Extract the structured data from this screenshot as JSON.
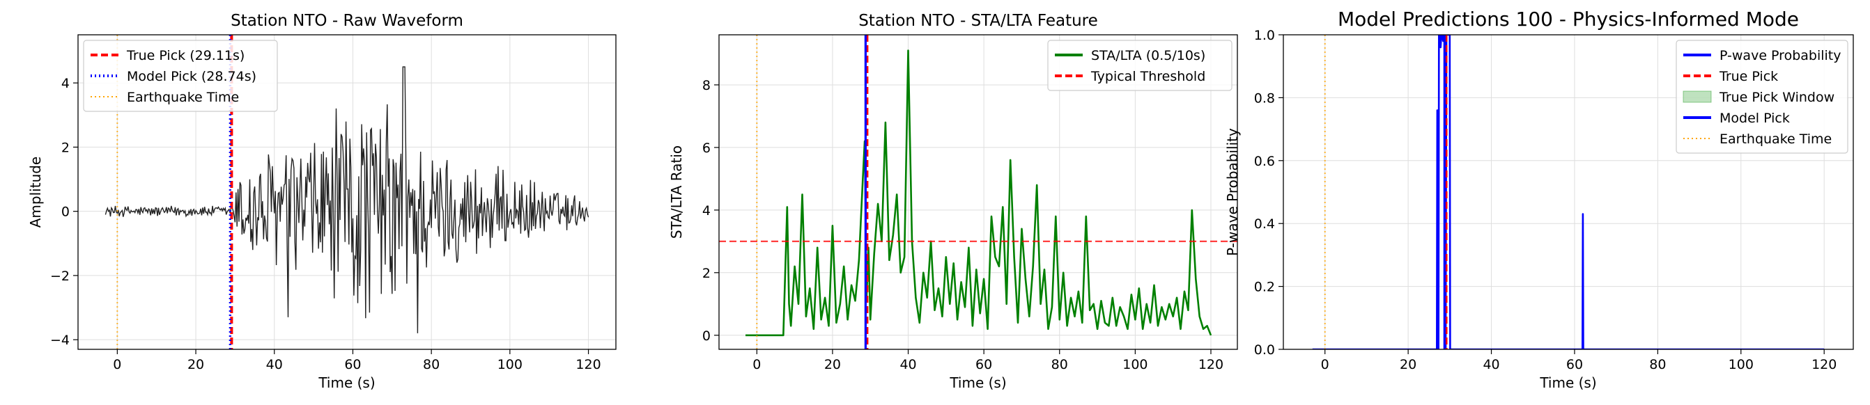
{
  "chart_data": [
    {
      "type": "line",
      "title": "Station NTO - Raw Waveform",
      "xlabel": "Time (s)",
      "ylabel": "Amplitude",
      "xlim": [
        -10,
        127
      ],
      "ylim": [
        -4.3,
        5.5
      ],
      "xticks": [
        0,
        20,
        40,
        60,
        80,
        100,
        120
      ],
      "yticks": [
        -4,
        -2,
        0,
        2,
        4
      ],
      "grid": true,
      "legend_position": "upper-left",
      "series": [
        {
          "name": "",
          "role": "waveform",
          "color": "#222222",
          "x_range": [
            -3,
            120
          ]
        }
      ],
      "markers": [
        {
          "name": "True Pick (29.11s)",
          "x": 29.11,
          "color": "#ff0000",
          "style": "dashed"
        },
        {
          "name": "Model Pick (28.74s)",
          "x": 28.74,
          "color": "#0000ff",
          "style": "dotted"
        },
        {
          "name": "Earthquake Time",
          "x": 0,
          "color": "#ffa500",
          "style": "dotted"
        }
      ],
      "legend": [
        "True Pick (29.11s)",
        "Model Pick (28.74s)",
        "Earthquake Time"
      ]
    },
    {
      "type": "line",
      "title": "Station NTO - STA/LTA Feature",
      "xlabel": "Time (s)",
      "ylabel": "STA/LTA Ratio",
      "xlim": [
        -10,
        127
      ],
      "ylim": [
        -0.45,
        9.6
      ],
      "xticks": [
        0,
        20,
        40,
        60,
        80,
        100,
        120
      ],
      "yticks": [
        0,
        2,
        4,
        6,
        8
      ],
      "grid": true,
      "legend_position": "upper-right",
      "series": [
        {
          "name": "STA/LTA (0.5/10s)",
          "color": "#008000",
          "x": [
            -3,
            7,
            7.5,
            8,
            8.5,
            9,
            10,
            11,
            12,
            13,
            14,
            15,
            16,
            17,
            18,
            19,
            20,
            21,
            22,
            23,
            24,
            25,
            26,
            27,
            28,
            28.5,
            29,
            29.5,
            30,
            31,
            32,
            33,
            34,
            35,
            36,
            37,
            38,
            39,
            40,
            41,
            42,
            43,
            44,
            45,
            46,
            47,
            48,
            49,
            50,
            51,
            52,
            53,
            54,
            55,
            56,
            57,
            58,
            59,
            60,
            61,
            62,
            63,
            64,
            65,
            66,
            67,
            68,
            69,
            70,
            71,
            72,
            73,
            74,
            75,
            76,
            77,
            78,
            79,
            80,
            81,
            82,
            83,
            84,
            85,
            86,
            87,
            88,
            89,
            90,
            91,
            92,
            93,
            94,
            95,
            96,
            97,
            98,
            99,
            100,
            101,
            102,
            103,
            104,
            105,
            106,
            107,
            108,
            109,
            110,
            111,
            112,
            113,
            114,
            115,
            116,
            117,
            118,
            119,
            120
          ],
          "y": [
            0,
            0,
            2.0,
            4.1,
            1.0,
            0.3,
            2.2,
            1.0,
            4.5,
            0.6,
            1.5,
            0.2,
            2.8,
            0.5,
            1.2,
            0.3,
            3.5,
            0.4,
            1.0,
            2.2,
            0.5,
            1.6,
            1.1,
            2.4,
            5.0,
            6.2,
            1.2,
            2.8,
            0.5,
            2.6,
            4.2,
            3.0,
            6.8,
            2.4,
            3.2,
            4.5,
            2.0,
            2.5,
            9.1,
            3.0,
            1.2,
            0.4,
            2.0,
            1.2,
            3.0,
            0.8,
            1.5,
            0.6,
            2.5,
            1.0,
            2.3,
            0.5,
            1.7,
            0.9,
            2.8,
            0.3,
            2.1,
            0.7,
            1.8,
            0.2,
            3.8,
            2.5,
            2.2,
            4.1,
            1.0,
            5.6,
            2.5,
            0.4,
            3.4,
            1.8,
            0.6,
            2.2,
            4.8,
            1.0,
            2.1,
            0.2,
            0.9,
            3.8,
            0.5,
            2.0,
            0.3,
            1.2,
            0.6,
            1.4,
            0.4,
            3.8,
            0.8,
            1.0,
            0.2,
            1.1,
            0.4,
            0.3,
            1.2,
            0.3,
            0.9,
            0.6,
            0.2,
            1.3,
            0.5,
            1.5,
            0.2,
            1.0,
            0.4,
            1.6,
            0.3,
            0.9,
            0.5,
            1.0,
            0.6,
            1.2,
            0.2,
            1.4,
            0.8,
            4.0,
            1.8,
            0.6,
            0.2,
            0.3,
            0.0
          ]
        },
        {
          "name": "Typical Threshold",
          "color": "#ff0000",
          "style": "dashed",
          "y_constant": 3.0
        }
      ],
      "markers": [
        {
          "x": 29.11,
          "color": "#ff0000",
          "style": "dashed"
        },
        {
          "x": 28.74,
          "color": "#0000ff",
          "style": "solid"
        },
        {
          "x": 0,
          "color": "#ffa500",
          "style": "dotted"
        }
      ],
      "legend": [
        "STA/LTA (0.5/10s)",
        "Typical Threshold"
      ]
    },
    {
      "type": "line",
      "title": "Model Predictions 100 - Physics-Informed Mode",
      "xlabel": "Time (s)",
      "ylabel": "P-wave Probability",
      "xlim": [
        -10,
        127
      ],
      "ylim": [
        0,
        1.0
      ],
      "xticks": [
        0,
        20,
        40,
        60,
        80,
        100,
        120
      ],
      "yticks": [
        0.0,
        0.2,
        0.4,
        0.6,
        0.8,
        1.0
      ],
      "grid": true,
      "legend_position": "upper-right",
      "series": [
        {
          "name": "P-wave Probability",
          "color": "#0000ff",
          "x": [
            -3,
            26.9,
            27.0,
            27.1,
            27.2,
            27.3,
            27.4,
            27.6,
            27.8,
            28.0,
            28.2,
            28.4,
            28.6,
            28.8,
            29.0,
            29.2,
            29.4,
            29.6,
            29.8,
            30.0,
            30.1,
            61.9,
            62.0,
            62.1,
            120
          ],
          "y": [
            0,
            0,
            0.76,
            0,
            0.76,
            0.0,
            1.0,
            1.0,
            0.96,
            1.0,
            1.0,
            0.98,
            1.0,
            1.0,
            0.0,
            1.0,
            1.0,
            1.0,
            1.0,
            1.0,
            0,
            0,
            0.43,
            0,
            0
          ]
        }
      ],
      "window": {
        "name": "True Pick Window",
        "x": [
          28.9,
          29.3
        ],
        "color": "#2ca02c"
      },
      "markers": [
        {
          "name": "True Pick",
          "x": 29.11,
          "color": "#ff0000",
          "style": "dashed"
        },
        {
          "name": "Model Pick",
          "x": 28.74,
          "color": "#0000ff",
          "style": "solid"
        },
        {
          "name": "Earthquake Time",
          "x": 0,
          "color": "#ffa500",
          "style": "dotted"
        }
      ],
      "legend": [
        "P-wave Probability",
        "True Pick",
        "True Pick Window",
        "Model Pick",
        "Earthquake Time"
      ]
    }
  ]
}
